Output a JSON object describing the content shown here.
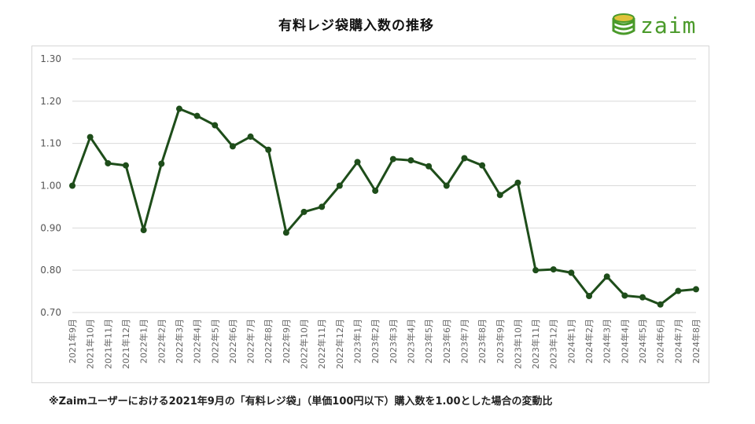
{
  "logo": {
    "text": "zaim"
  },
  "footnote": "※Zaimユーザーにおける2021年9月の「有料レジ袋」（単価100円以下）購入数を1.00とした場合の変動比",
  "chart_data": {
    "type": "line",
    "title": "有料レジ袋購入数の推移",
    "xlabel": "",
    "ylabel": "",
    "ylim": [
      0.7,
      1.3
    ],
    "yticks": [
      "0.70",
      "0.80",
      "0.90",
      "1.00",
      "1.10",
      "1.20",
      "1.30"
    ],
    "grid": true,
    "line_color": "#1e4d1a",
    "categories": [
      "2021年9月",
      "2021年10月",
      "2021年11月",
      "2021年12月",
      "2022年1月",
      "2022年2月",
      "2022年3月",
      "2022年4月",
      "2022年5月",
      "2022年6月",
      "2022年7月",
      "2022年8月",
      "2022年9月",
      "2022年10月",
      "2022年11月",
      "2022年12月",
      "2023年1月",
      "2023年2月",
      "2023年3月",
      "2023年4月",
      "2023年5月",
      "2023年6月",
      "2023年7月",
      "2023年8月",
      "2023年9月",
      "2023年10月",
      "2023年11月",
      "2023年12月",
      "2024年1月",
      "2024年2月",
      "2024年3月",
      "2024年4月",
      "2024年5月",
      "2024年6月",
      "2024年7月",
      "2024年8月"
    ],
    "values": [
      1.0,
      1.115,
      1.053,
      1.048,
      0.895,
      1.052,
      1.182,
      1.165,
      1.143,
      1.093,
      1.116,
      1.085,
      0.889,
      0.938,
      0.95,
      1.0,
      1.056,
      0.988,
      1.063,
      1.06,
      1.046,
      1.0,
      1.065,
      1.048,
      0.978,
      1.007,
      0.8,
      0.802,
      0.794,
      0.739,
      0.785,
      0.74,
      0.736,
      0.719,
      0.751,
      0.755
    ]
  }
}
